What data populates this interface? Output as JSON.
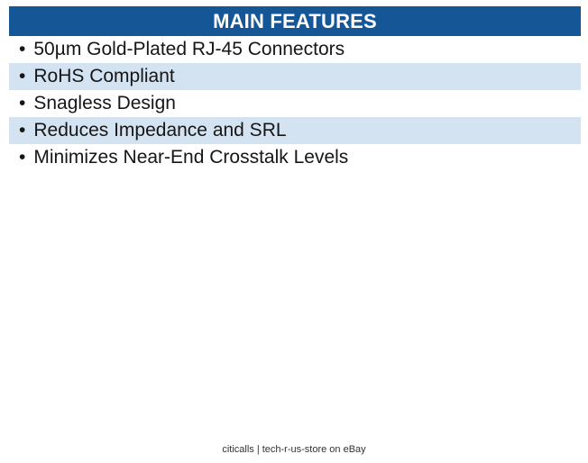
{
  "header": {
    "title": "MAIN FEATURES"
  },
  "features": {
    "bullet": "•",
    "items": [
      {
        "label": "50µm Gold-Plated RJ-45 Connectors",
        "highlighted": false
      },
      {
        "label": "RoHS Compliant",
        "highlighted": true
      },
      {
        "label": "Snagless Design",
        "highlighted": false
      },
      {
        "label": "Reduces Impedance and SRL",
        "highlighted": true
      },
      {
        "label": "Minimizes Near-End Crosstalk Levels",
        "highlighted": false
      }
    ]
  },
  "footer": {
    "text": "citicalls | tech-r-us-store on eBay"
  },
  "colors": {
    "header_bg": "#155696",
    "header_text": "#FFFFFF",
    "highlight_bg": "#D4E3F2"
  }
}
